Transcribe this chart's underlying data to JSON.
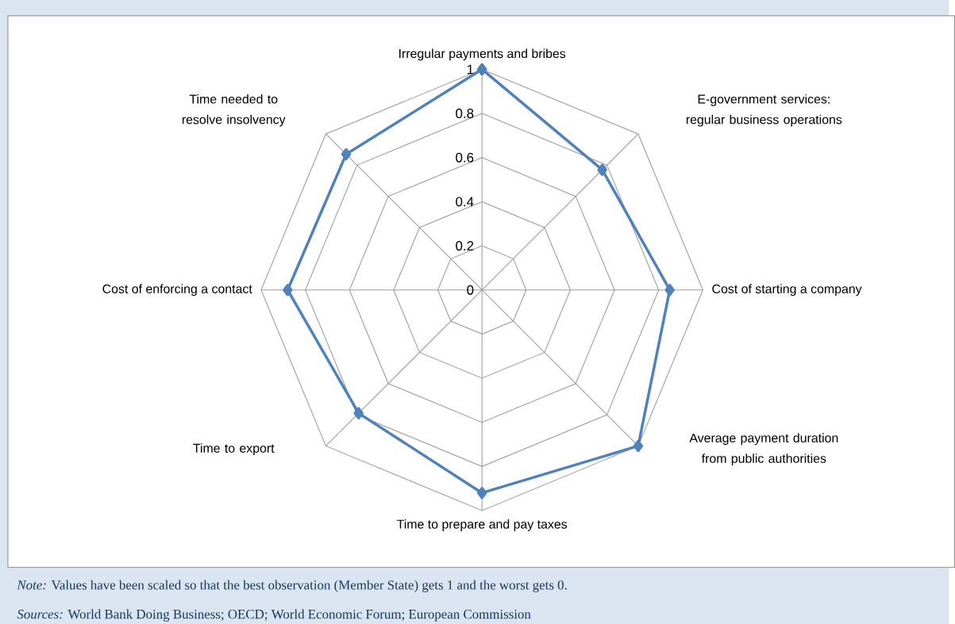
{
  "chart_data": {
    "type": "radar",
    "categories": [
      "Irregular payments and bribes",
      "E-government services: regular business operations",
      "Cost of starting a company",
      "Average payment duration from public authorities",
      "Time to prepare and pay taxes",
      "Time to export",
      "Cost of enforcing a contact",
      "Time needed to resolve insolvency"
    ],
    "series": [
      {
        "color": "#4f81bd",
        "values": [
          1.0,
          0.77,
          0.85,
          1.0,
          0.92,
          0.79,
          0.88,
          0.87
        ]
      }
    ],
    "ylim": [
      0,
      1
    ],
    "yticks": [
      0,
      0.2,
      0.4,
      0.6,
      0.8,
      1
    ],
    "grid": true,
    "marker": "diamond",
    "line_style": "solid",
    "annotations": [
      "*Note:* Values have been scaled so that the best observation (Member State) gets 1 and the worst gets 0.",
      "*Sources:* World Bank Doing Business; OECD; World Economic Forum; European Commission"
    ]
  }
}
